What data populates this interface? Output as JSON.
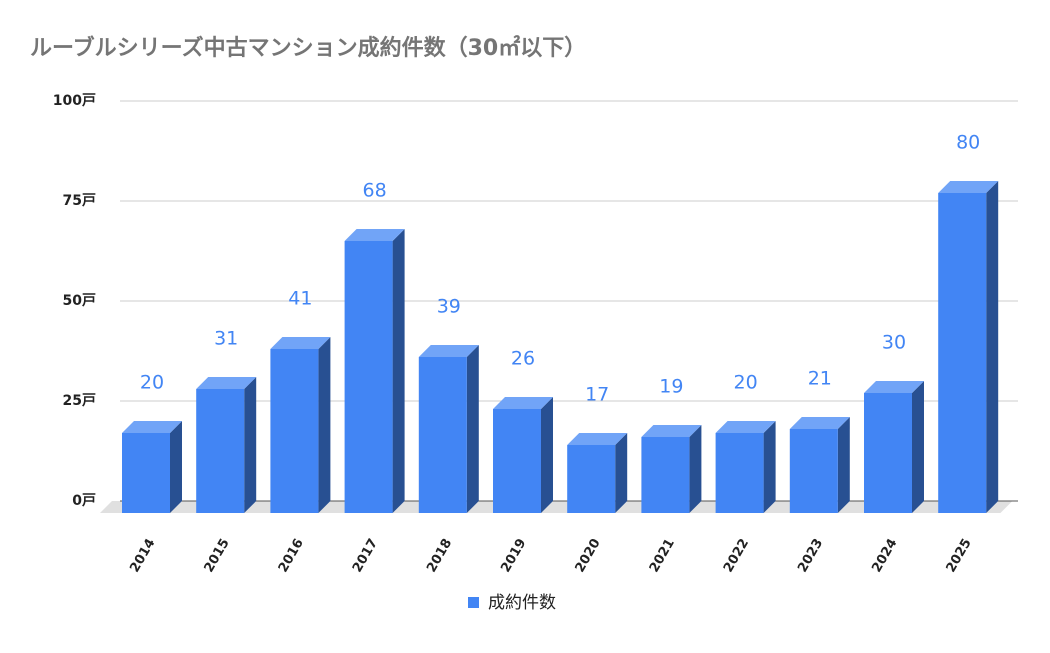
{
  "chart_data": {
    "type": "bar3d",
    "title": "ルーブルシリーズ中古マンション成約件数（30㎡以下）",
    "categories": [
      "2014",
      "2015",
      "2016",
      "2017",
      "2018",
      "2019",
      "2020",
      "2021",
      "2022",
      "2023",
      "2024",
      "2025"
    ],
    "series": [
      {
        "name": "成約件数",
        "color": "#4285f4",
        "values": [
          20,
          31,
          41,
          68,
          39,
          26,
          17,
          19,
          20,
          21,
          30,
          80
        ]
      }
    ],
    "ylim": [
      0,
      100
    ],
    "yticks": [
      {
        "value": 0,
        "label": "0戸"
      },
      {
        "value": 25,
        "label": "25戸"
      },
      {
        "value": 50,
        "label": "50戸"
      },
      {
        "value": 75,
        "label": "75戸"
      },
      {
        "value": 100,
        "label": "100戸"
      }
    ],
    "grid": true,
    "legend": "bottom"
  }
}
